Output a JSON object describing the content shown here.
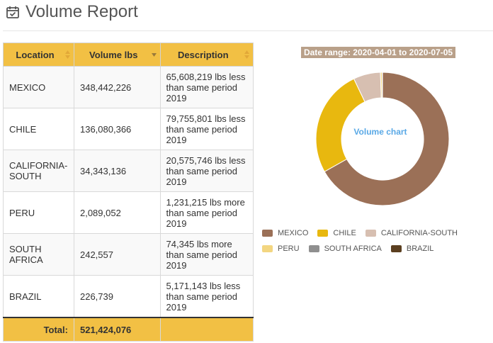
{
  "header": {
    "title": "Volume Report",
    "icon": "calendar-check-icon"
  },
  "table": {
    "columns": [
      "Location",
      "Volume lbs",
      "Description"
    ],
    "rows": [
      {
        "location": "MEXICO",
        "volume": "348,442,226",
        "description": "65,608,219 lbs less than same period 2019"
      },
      {
        "location": "CHILE",
        "volume": "136,080,366",
        "description": "79,755,801 lbs less than same period 2019"
      },
      {
        "location": "CALIFORNIA-SOUTH",
        "volume": "34,343,136",
        "description": "20,575,746 lbs less than same period 2019"
      },
      {
        "location": "PERU",
        "volume": "2,089,052",
        "description": "1,231,215 lbs more than same period 2019"
      },
      {
        "location": "SOUTH AFRICA",
        "volume": "242,557",
        "description": "74,345 lbs more than same period 2019"
      },
      {
        "location": "BRAZIL",
        "volume": "226,739",
        "description": "5,171,143 lbs less than same period 2019"
      }
    ],
    "footer": {
      "label": "Total:",
      "volume": "521,424,076"
    }
  },
  "date_range": "Date range: 2020-04-01 to 2020-07-05",
  "chart_data": {
    "type": "pie",
    "title": "Volume chart",
    "categories": [
      "MEXICO",
      "CHILE",
      "CALIFORNIA-SOUTH",
      "PERU",
      "SOUTH AFRICA",
      "BRAZIL"
    ],
    "values": [
      348442226,
      136080366,
      34343136,
      2089052,
      242557,
      226739
    ],
    "colors": [
      "#9b7057",
      "#e8b80f",
      "#d7bfb1",
      "#f3d681",
      "#8f8f8f",
      "#5b3f20"
    ],
    "legend_position": "bottom"
  },
  "colors": {
    "header_bg": "#f2c044",
    "range_bg": "#b9a089",
    "center_text": "#5aa9e6"
  }
}
